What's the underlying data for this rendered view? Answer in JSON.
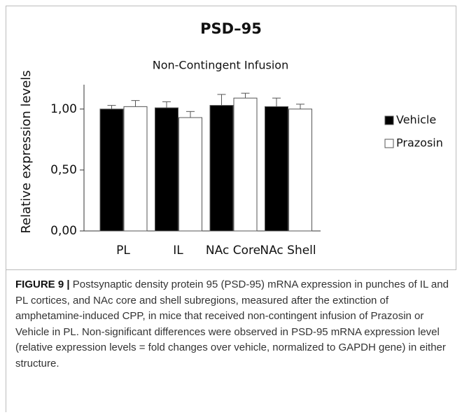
{
  "chart_data": {
    "type": "bar",
    "title": "PSD–95",
    "subtitle": "Non-Contingent Infusion",
    "ylabel": "Relative expression levels",
    "categories": [
      "PL",
      "IL",
      "NAc Core",
      "NAc Shell"
    ],
    "series": [
      {
        "name": "Vehicle",
        "color": "#000000",
        "values": [
          1.0,
          1.01,
          1.03,
          1.02
        ],
        "errors": [
          0.03,
          0.05,
          0.09,
          0.07
        ]
      },
      {
        "name": "Prazosin",
        "color": "#ffffff",
        "values": [
          1.02,
          0.93,
          1.09,
          1.0
        ],
        "errors": [
          0.05,
          0.05,
          0.04,
          0.04
        ]
      }
    ],
    "ylim": [
      0,
      1.2
    ],
    "yticks": [
      {
        "value": 0,
        "label": "0,00"
      },
      {
        "value": 0.5,
        "label": "0,50"
      },
      {
        "value": 1,
        "label": "1,00"
      }
    ],
    "legend": "right"
  },
  "caption": {
    "label": "FIGURE 9 |",
    "text": "Postsynaptic density protein 95 (PSD-95) mRNA expression in punches of IL and PL cortices, and NAc core and shell subregions, measured after the extinction of amphetamine-induced CPP, in mice that received non-contingent infusion of Prazosin or Vehicle in PL. Non-significant differences were observed in PSD-95 mRNA expression level (relative expression levels = fold changes over vehicle, normalized to GAPDH gene) in either structure."
  }
}
